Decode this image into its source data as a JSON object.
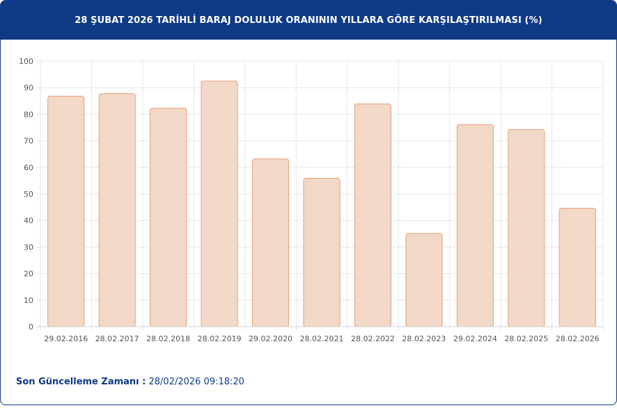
{
  "header": {
    "title": "28 ŞUBAT 2026 TARİHLİ BARAJ DOLULUK ORANININ YILLARA GÖRE KARŞILAŞTIRILMASI (%)"
  },
  "footer": {
    "label": "Son Güncelleme Zamanı :",
    "value": "28/02/2026 09:18:20"
  },
  "colors": {
    "header_bg": "#0e3a86",
    "bar_fill": "#f2d8c6",
    "bar_stroke": "#e7a07a",
    "grid": "#e6e6e6"
  },
  "chart_data": {
    "type": "bar",
    "categories": [
      "29.02.2016",
      "28.02.2017",
      "28.02.2018",
      "28.02.2019",
      "29.02.2020",
      "28.02.2021",
      "28.02.2022",
      "28.02.2023",
      "29.02.2024",
      "28.02.2025",
      "28.02.2026"
    ],
    "values": [
      86.8,
      87.8,
      82.3,
      92.5,
      63.2,
      55.9,
      83.9,
      35.1,
      76.1,
      74.2,
      44.6
    ],
    "yticks": [
      0,
      10,
      20,
      30,
      40,
      50,
      60,
      70,
      80,
      90,
      100
    ],
    "ylim": [
      0,
      100
    ],
    "grid": true,
    "legend": "none"
  }
}
